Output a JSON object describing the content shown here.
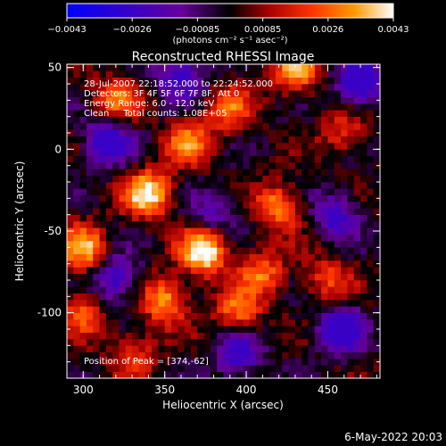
{
  "chart_data": {
    "type": "heatmap",
    "title": "Reconstructed RHESSI Image",
    "xlabel": "Heliocentric X (arcsec)",
    "ylabel": "Heliocentric Y (arcsec)",
    "xlim": [
      290,
      482
    ],
    "ylim": [
      -140,
      52
    ],
    "x_ticks": [
      "300",
      "350",
      "400",
      "450"
    ],
    "y_ticks": [
      "50",
      "0",
      "-50",
      "-100"
    ],
    "colorbar": {
      "ticks": [
        "−0.0043",
        "−0.0026",
        "−0.00085",
        "0.00085",
        "0.0026",
        "0.0043"
      ],
      "range": [
        -0.0043,
        0.0043
      ],
      "unit_text": "(photons cm⁻² s⁻¹ asec⁻²)"
    },
    "annotations": [
      "28-Jul-2007 22:18:52.000 to 22:24:52.000",
      "Detectors: 3F 4F 5F 6F 7F 8F, Att 0",
      "Energy Range: 6.0 - 12.0 keV",
      "Clean     Total counts: 1.08E+05"
    ],
    "peak_label": "Position of Peak = [374,-62]",
    "peak_position": [
      374,
      -62
    ],
    "hotspots": [
      {
        "x": 374,
        "y": -62,
        "v": 1.0
      },
      {
        "x": 340,
        "y": -27,
        "v": 0.9
      },
      {
        "x": 300,
        "y": -60,
        "v": 0.75
      },
      {
        "x": 430,
        "y": 48,
        "v": 0.7
      },
      {
        "x": 420,
        "y": -35,
        "v": 0.65
      },
      {
        "x": 350,
        "y": -92,
        "v": 0.7
      },
      {
        "x": 395,
        "y": -100,
        "v": 0.6
      },
      {
        "x": 320,
        "y": 30,
        "v": 0.55
      },
      {
        "x": 365,
        "y": 5,
        "v": 0.6
      },
      {
        "x": 410,
        "y": -75,
        "v": 0.55
      },
      {
        "x": 300,
        "y": -100,
        "v": 0.5
      },
      {
        "x": 450,
        "y": -80,
        "v": 0.45
      },
      {
        "x": 390,
        "y": 25,
        "v": 0.5
      },
      {
        "x": 330,
        "y": -125,
        "v": 0.45
      },
      {
        "x": 460,
        "y": 10,
        "v": 0.4
      }
    ],
    "coldspots": [
      {
        "x": 470,
        "y": 40,
        "v": -0.8
      },
      {
        "x": 315,
        "y": 5,
        "v": -0.7
      },
      {
        "x": 360,
        "y": 45,
        "v": -0.6
      },
      {
        "x": 458,
        "y": -110,
        "v": -0.75
      },
      {
        "x": 320,
        "y": -80,
        "v": -0.6
      },
      {
        "x": 455,
        "y": -40,
        "v": -0.55
      },
      {
        "x": 395,
        "y": -125,
        "v": -0.6
      },
      {
        "x": 380,
        "y": -40,
        "v": -0.4
      }
    ]
  },
  "footer_date": "6-May-2022 20:03"
}
